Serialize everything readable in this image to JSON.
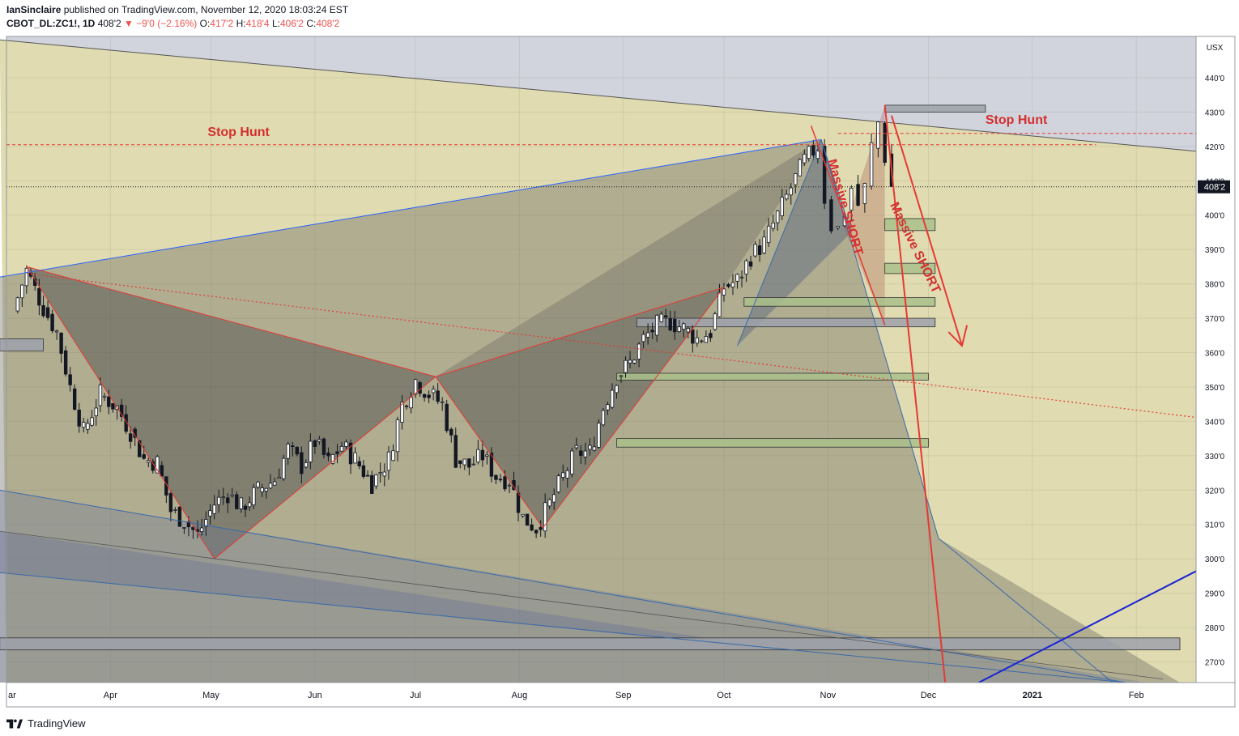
{
  "header": {
    "author": "IanSinclaire",
    "published": " published on TradingView.com, November 12, 2020 18:03:24 EST",
    "symbol": "CBOT_DL:ZC1!, 1D",
    "last": "408'2",
    "change": "▼ −9'0 (−2.16%)",
    "o_label": "O:",
    "o_val": "417'2",
    "h_label": "H:",
    "h_val": "418'4",
    "l_label": "L:",
    "l_val": "406'2",
    "c_label": "C:",
    "c_val": "408'2"
  },
  "footer": {
    "brand": "TradingView"
  },
  "colors": {
    "pane_light": "#e0dbb0",
    "pane_grey": "#d1d4dc",
    "up": "#ffffff",
    "down": "#131722",
    "annotation_red": "#d32f2f",
    "pattern_red": "#e53935",
    "pattern_blue": "#2962ff",
    "zone_green": "#a9c08a"
  },
  "chart_data": {
    "type": "candlestick",
    "y_unit": "USX",
    "ylim": [
      264,
      452
    ],
    "y_ticks": [
      "440'0",
      "430'0",
      "420'0",
      "410'0",
      "400'0",
      "390'0",
      "380'0",
      "370'0",
      "360'0",
      "350'0",
      "340'0",
      "330'0",
      "320'0",
      "310'0",
      "300'0",
      "290'0",
      "280'0",
      "270'0"
    ],
    "y_tick_values": [
      440,
      430,
      420,
      410,
      400,
      390,
      380,
      370,
      360,
      350,
      340,
      330,
      320,
      310,
      300,
      290,
      280,
      270
    ],
    "x_ticks": [
      "ar",
      "Apr",
      "May",
      "Jun",
      "Jul",
      "Aug",
      "Sep",
      "Oct",
      "Nov",
      "Dec",
      "2021",
      "Feb"
    ],
    "x_tick_days": [
      0,
      31,
      61,
      92,
      122,
      153,
      184,
      214,
      245,
      275,
      306,
      337
    ],
    "last_price_label": "408'2",
    "last_price": 408.25,
    "annotations": [
      {
        "text": "Stop Hunt",
        "day": 60,
        "price": 423
      },
      {
        "text": "Stop Hunt",
        "day": 292,
        "price": 426.5
      },
      {
        "text": "Massive SHORT",
        "day": 249,
        "price": 402
      },
      {
        "text": "Massive SHORT",
        "day": 270,
        "price": 390
      }
    ],
    "ohlc_path": [
      [
        2,
        372
      ],
      [
        6,
        384
      ],
      [
        11,
        373
      ],
      [
        15,
        366
      ],
      [
        19,
        350
      ],
      [
        23,
        337
      ],
      [
        28,
        348
      ],
      [
        33,
        344
      ],
      [
        37,
        337
      ],
      [
        41,
        329
      ],
      [
        45,
        328
      ],
      [
        49,
        314
      ],
      [
        53,
        311
      ],
      [
        57,
        307
      ],
      [
        62,
        316
      ],
      [
        66,
        319
      ],
      [
        70,
        315
      ],
      [
        75,
        320
      ],
      [
        80,
        323
      ],
      [
        84,
        332
      ],
      [
        88,
        327
      ],
      [
        92,
        334
      ],
      [
        96,
        328
      ],
      [
        100,
        333
      ],
      [
        104,
        329
      ],
      [
        109,
        322
      ],
      [
        114,
        329
      ],
      [
        118,
        345
      ],
      [
        122,
        352
      ],
      [
        126,
        348
      ],
      [
        130,
        345
      ],
      [
        134,
        329
      ],
      [
        138,
        327
      ],
      [
        142,
        330
      ],
      [
        146,
        324
      ],
      [
        150,
        323
      ],
      [
        154,
        312
      ],
      [
        158,
        309
      ],
      [
        162,
        316
      ],
      [
        166,
        324
      ],
      [
        170,
        331
      ],
      [
        174,
        331
      ],
      [
        178,
        344
      ],
      [
        182,
        353
      ],
      [
        186,
        357
      ],
      [
        190,
        364
      ],
      [
        194,
        368
      ],
      [
        198,
        369
      ],
      [
        202,
        367
      ],
      [
        206,
        364
      ],
      [
        210,
        366
      ],
      [
        214,
        379
      ],
      [
        218,
        381
      ],
      [
        222,
        388
      ],
      [
        226,
        392
      ],
      [
        230,
        400
      ],
      [
        234,
        408
      ],
      [
        238,
        416
      ],
      [
        242,
        420
      ],
      [
        244,
        405
      ],
      [
        246,
        397
      ],
      [
        248,
        396
      ],
      [
        250,
        401
      ],
      [
        252,
        408
      ],
      [
        254,
        403
      ],
      [
        256,
        408
      ],
      [
        258,
        420
      ],
      [
        260,
        427
      ],
      [
        262,
        417
      ],
      [
        264,
        408.25
      ]
    ],
    "horizontal_levels": [
      {
        "price": 420.5,
        "style": "dashed-red"
      },
      {
        "price": 423.8,
        "style": "dashed-red"
      },
      {
        "price": 408.25,
        "style": "dotted-last"
      }
    ],
    "zones": [
      {
        "price_top": 432,
        "price_bottom": 430,
        "from_day": 262,
        "to_day": 292,
        "color": "grey"
      },
      {
        "price_top": 399,
        "price_bottom": 395.5,
        "from_day": 262,
        "to_day": 277,
        "color": "green"
      },
      {
        "price_top": 386,
        "price_bottom": 383,
        "from_day": 262,
        "to_day": 277,
        "color": "green"
      },
      {
        "price_top": 376,
        "price_bottom": 373.5,
        "from_day": 220,
        "to_day": 277,
        "color": "green"
      },
      {
        "price_top": 370,
        "price_bottom": 367.5,
        "from_day": 188,
        "to_day": 277,
        "color": "grey"
      },
      {
        "price_top": 354,
        "price_bottom": 352,
        "from_day": 182,
        "to_day": 275,
        "color": "green"
      },
      {
        "price_top": 335,
        "price_bottom": 332.5,
        "from_day": 182,
        "to_day": 275,
        "color": "green"
      },
      {
        "price_top": 364,
        "price_bottom": 360.5,
        "from_day": -2,
        "to_day": 11,
        "color": "grey"
      },
      {
        "price_top": 277,
        "price_bottom": 273.5,
        "from_day": -2,
        "to_day": 350,
        "color": "grey"
      }
    ]
  }
}
